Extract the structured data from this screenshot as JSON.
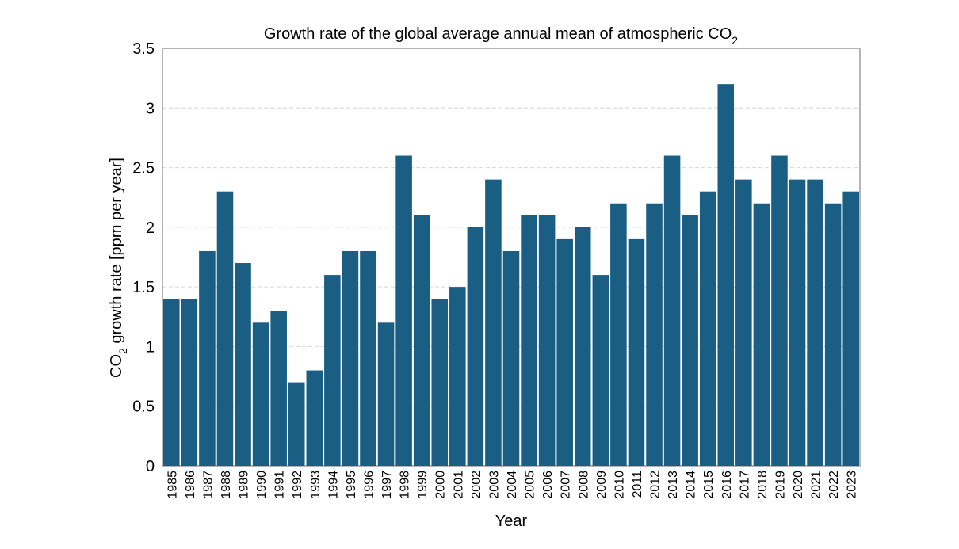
{
  "chart_data": {
    "type": "bar",
    "title": "Growth rate of the global average annual mean of atmospheric CO",
    "title_subscript": "2",
    "xlabel": "Year",
    "ylabel_prefix": "CO",
    "ylabel_subscript": "2",
    "ylabel_suffix": " growth rate [ppm per year]",
    "ylim": [
      0,
      3.5
    ],
    "yticks": [
      0,
      0.5,
      1,
      1.5,
      2,
      2.5,
      3,
      3.5
    ],
    "ytick_labels": [
      "0",
      "0.5",
      "1",
      "1.5",
      "2",
      "2.5",
      "3",
      "3.5"
    ],
    "grid": true,
    "legend": "none",
    "bar_color": "#1a5f83",
    "categories": [
      "1985",
      "1986",
      "1987",
      "1988",
      "1989",
      "1990",
      "1991",
      "1992",
      "1993",
      "1994",
      "1995",
      "1996",
      "1997",
      "1998",
      "1999",
      "2000",
      "2001",
      "2002",
      "2003",
      "2004",
      "2005",
      "2006",
      "2007",
      "2008",
      "2009",
      "2010",
      "2011",
      "2012",
      "2013",
      "2014",
      "2015",
      "2016",
      "2017",
      "2018",
      "2019",
      "2020",
      "2021",
      "2022",
      "2023"
    ],
    "values": [
      1.4,
      1.4,
      1.8,
      2.3,
      1.7,
      1.2,
      1.3,
      0.7,
      0.8,
      1.6,
      1.8,
      1.8,
      1.2,
      2.6,
      2.1,
      1.4,
      1.5,
      2.0,
      2.4,
      1.8,
      2.1,
      2.1,
      1.9,
      2.0,
      1.6,
      2.2,
      1.9,
      2.2,
      2.6,
      2.1,
      2.3,
      3.2,
      2.4,
      2.2,
      2.6,
      2.4,
      2.4,
      2.2,
      2.3
    ]
  }
}
